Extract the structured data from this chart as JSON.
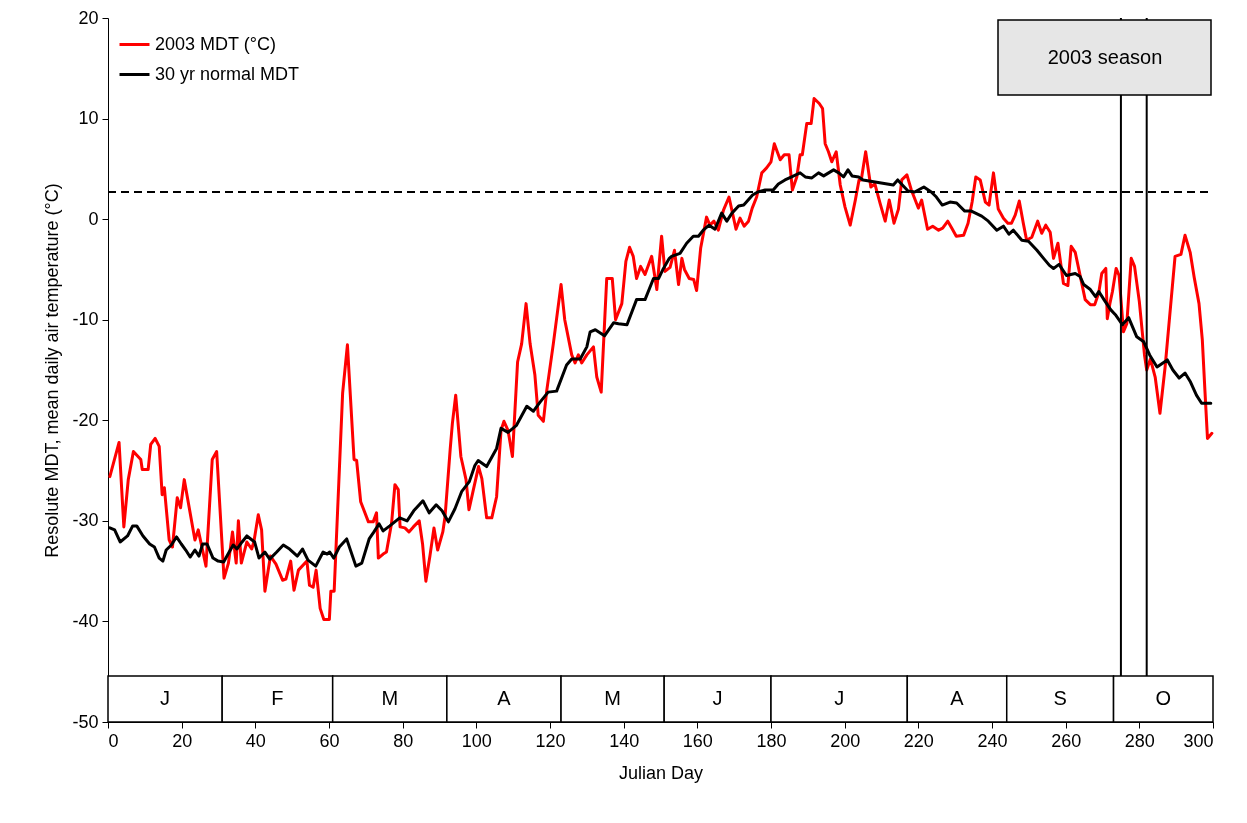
{
  "chart_data": {
    "type": "line",
    "xlabel": "Julian Day",
    "ylabel": "Resolute MDT, mean daily air temperature (°C)",
    "xlim": [
      0,
      300
    ],
    "xticks": [
      0,
      20,
      40,
      60,
      80,
      100,
      120,
      140,
      160,
      180,
      200,
      220,
      240,
      260,
      280,
      300
    ],
    "ylim": [
      -50,
      20
    ],
    "yticks": [
      -50,
      -40,
      -30,
      -20,
      -10,
      0,
      10,
      20
    ],
    "grid": false,
    "legend": "top left",
    "line_style": "solid",
    "marker": "none",
    "series": [
      {
        "name": "2003 MDT (°C)",
        "color": "#ff0000",
        "x": [
          0.5,
          3,
          4.3,
          5.5,
          6.9,
          8.9,
          9.3,
          10.9,
          11.6,
          12.8,
          13.9,
          14.7,
          15.3,
          16.6,
          17.5,
          18.8,
          19.7,
          20.7,
          23.6,
          24.5,
          26.6,
          28.3,
          29.5,
          31.5,
          32.7,
          33.8,
          34.8,
          35.4,
          36.2,
          37.7,
          39,
          39.6,
          40.8,
          41.7,
          42.6,
          44.1,
          45.6,
          47.4,
          48.3,
          49.6,
          50.5,
          51.7,
          54,
          54.7,
          55.7,
          56.5,
          57.6,
          58.6,
          60.1,
          60.5,
          61.4,
          63.7,
          65,
          66.8,
          67.5,
          68.6,
          70.7,
          72,
          72.9,
          73.4,
          74.7,
          75.6,
          77,
          77.9,
          78.8,
          79.3,
          80.6,
          81.7,
          82.9,
          84.5,
          85.4,
          86.3,
          87.4,
          88.5,
          89.5,
          90.9,
          91.5,
          92.9,
          93.5,
          94.4,
          95.8,
          97.2,
          98,
          99.2,
          100.6,
          101.5,
          102.8,
          104.2,
          105.5,
          106.7,
          107.5,
          108.6,
          109.8,
          111.2,
          112.3,
          113.5,
          114.6,
          115.9,
          116.8,
          118.2,
          119.1,
          120.9,
          123,
          124,
          125.9,
          126.8,
          127.7,
          128.6,
          130,
          131.8,
          132.7,
          133.9,
          135.4,
          136.9,
          137.8,
          139.5,
          140.6,
          141.6,
          142.6,
          143.5,
          144.6,
          145.8,
          147.6,
          149,
          150.3,
          151.2,
          152.6,
          153.8,
          154.9,
          155.8,
          156.5,
          157.8,
          159,
          159.8,
          160.9,
          162.5,
          163.4,
          164.5,
          165.7,
          167.1,
          168.6,
          170.5,
          171.6,
          172.7,
          173.9,
          174.9,
          176.1,
          177.5,
          178.8,
          180,
          180.9,
          182.5,
          183.6,
          184.9,
          185.8,
          187,
          187.9,
          188.5,
          189.7,
          190.9,
          191.7,
          193.1,
          194,
          194.7,
          195.6,
          196.5,
          197.7,
          198.8,
          200.1,
          201.5,
          202.9,
          203.9,
          204.5,
          205.7,
          207.1,
          208.2,
          209.6,
          211,
          212.1,
          213.4,
          214.6,
          215.5,
          216.9,
          218.1,
          220,
          220.9,
          222.5,
          223.9,
          225.5,
          226.6,
          228,
          229.1,
          230.3,
          232.3,
          233.5,
          234.6,
          235.6,
          236.8,
          238.2,
          239.2,
          240.4,
          241.7,
          243.1,
          244.3,
          245.3,
          246.3,
          247.4,
          248.5,
          249.4,
          250.8,
          252.4,
          253.5,
          254.6,
          255.8,
          256.7,
          257.9,
          259.4,
          260.6,
          261.5,
          262.6,
          265.3,
          266.7,
          267.9,
          269,
          269.8,
          270.9,
          271.3,
          272,
          272.7,
          273.7,
          274.5,
          275.7,
          276.6,
          277.8,
          278.7,
          280,
          281.4,
          282,
          283,
          284.3,
          285.6,
          287,
          288.3,
          289.7,
          291.3,
          292.4,
          293.8,
          294.9,
          296.2,
          297.1,
          297.8,
          298.5,
          299.7
        ],
        "values": [
          -25.6,
          -22.2,
          -30.6,
          -25.9,
          -23.1,
          -23.9,
          -24.9,
          -24.9,
          -22.4,
          -21.8,
          -22.6,
          -27.4,
          -26.7,
          -31.9,
          -32.6,
          -27.7,
          -28.7,
          -25.9,
          -31.9,
          -30.9,
          -34.5,
          -23.9,
          -23.1,
          -35.7,
          -34.2,
          -31.1,
          -34.2,
          -30,
          -34.2,
          -32.1,
          -32.8,
          -32.1,
          -29.4,
          -30.9,
          -37,
          -33.5,
          -34.3,
          -35.9,
          -35.8,
          -34,
          -36.9,
          -34.9,
          -34,
          -36.4,
          -36.6,
          -34.9,
          -38.7,
          -39.8,
          -39.8,
          -37,
          -37,
          -17.3,
          -12.5,
          -23.9,
          -24,
          -28.1,
          -30.1,
          -30.1,
          -29.2,
          -33.7,
          -33.3,
          -33.1,
          -30.2,
          -26.4,
          -26.9,
          -30.6,
          -30.7,
          -31.1,
          -30.6,
          -30,
          -32.3,
          -36,
          -33.5,
          -30.7,
          -32.9,
          -31.1,
          -29.6,
          -22.9,
          -20.3,
          -17.5,
          -23.6,
          -25.9,
          -28.9,
          -26.9,
          -24.6,
          -25.8,
          -29.7,
          -29.7,
          -27.6,
          -21,
          -20.1,
          -21,
          -23.6,
          -14.2,
          -12.4,
          -8.4,
          -12.4,
          -15.5,
          -19.5,
          -20.1,
          -17.1,
          -12.4,
          -6.5,
          -10,
          -13.5,
          -14.3,
          -13.5,
          -14.3,
          -13.5,
          -12.7,
          -15.7,
          -17.2,
          -5.9,
          -5.9,
          -10,
          -8.4,
          -4.2,
          -2.8,
          -3.7,
          -5.9,
          -4.7,
          -5.5,
          -3.7,
          -7,
          -1.7,
          -5.2,
          -4.8,
          -3.1,
          -6.5,
          -3.9,
          -5,
          -5.9,
          -6,
          -7.1,
          -2.9,
          0.2,
          -0.6,
          -0.2,
          -1.1,
          0.9,
          2.2,
          -1,
          0.1,
          -0.7,
          -0.2,
          1.1,
          2.2,
          4.6,
          5.1,
          5.7,
          7.5,
          5.9,
          6.4,
          6.4,
          2.9,
          4.2,
          6.4,
          6.4,
          9.5,
          9.5,
          12,
          11.5,
          11,
          7.5,
          6.7,
          5.7,
          6.7,
          3.4,
          1.2,
          -0.6,
          1.9,
          3.9,
          3.9,
          6.7,
          3.2,
          3.5,
          1.6,
          -0.2,
          1.9,
          -0.4,
          1,
          3.9,
          4.4,
          2.9,
          1.1,
          1.9,
          -1,
          -0.7,
          -1.1,
          -0.9,
          -0.2,
          -0.9,
          -1.7,
          -1.6,
          -0.4,
          1.7,
          4.2,
          3.9,
          1.7,
          1.4,
          4.6,
          1,
          0.1,
          -0.4,
          -0.4,
          0.4,
          1.8,
          -0.4,
          -2.1,
          -1.8,
          -0.2,
          -1.4,
          -0.6,
          -1.3,
          -3.9,
          -2.4,
          -6.4,
          -6.6,
          -2.7,
          -3.3,
          -8,
          -8.5,
          -8.5,
          -7.3,
          -5.4,
          -4.9,
          -9.9,
          -8.4,
          -7.2,
          -4.9,
          -5.6,
          -11.2,
          -10.4,
          -3.9,
          -4.7,
          -8.2,
          -13.5,
          -15,
          -13.9,
          -15.7,
          -19.3,
          -14.7,
          -9.4,
          -3.7,
          -3.5,
          -1.6,
          -3.3,
          -5.8,
          -8.4,
          -12,
          -17,
          -21.8,
          -21.3
        ]
      },
      {
        "name": "30 yr normal MDT",
        "color": "#000000",
        "x": [
          0.5,
          1.8,
          3.3,
          5.3,
          6.7,
          7.8,
          9.5,
          11.3,
          12.6,
          13.9,
          14.9,
          15.8,
          17.2,
          18.6,
          19.9,
          21.1,
          22.3,
          23.6,
          24.7,
          25.7,
          26.9,
          28.5,
          29.9,
          31.4,
          32.9,
          34,
          35,
          36.4,
          37.7,
          39.8,
          41,
          42.6,
          43.9,
          45.8,
          47.6,
          49.3,
          51.4,
          52.8,
          54.3,
          56.4,
          58.4,
          59.5,
          60.2,
          61.3,
          62.8,
          64.8,
          67.3,
          68.9,
          70.9,
          72.2,
          73.6,
          74.7,
          76.5,
          79.2,
          81.2,
          83,
          85.5,
          87.2,
          89.1,
          90.7,
          92.4,
          94.2,
          96,
          98.1,
          99.6,
          100.5,
          102.8,
          105.5,
          106.7,
          108.6,
          110.9,
          113.7,
          115.5,
          117.3,
          119.5,
          121.8,
          124.5,
          125.9,
          128.2,
          130,
          130.9,
          132.3,
          134.8,
          137.3,
          138.6,
          140.9,
          143.5,
          145.8,
          148.1,
          149.5,
          150.8,
          152.4,
          153,
          155.3,
          157.1,
          158.9,
          160.3,
          161.6,
          163.2,
          164.8,
          166.6,
          168,
          169.4,
          171.2,
          172.6,
          175,
          176.4,
          178.4,
          180.6,
          182,
          183.8,
          185.6,
          187.9,
          189.3,
          191.1,
          192.9,
          194.3,
          197,
          198.4,
          199.7,
          200.9,
          202,
          203.8,
          205,
          213.2,
          214.4,
          217.2,
          219,
          221.5,
          223.5,
          224.9,
          226.5,
          228.6,
          230.4,
          232.6,
          234.4,
          237.2,
          239,
          241.3,
          243.1,
          244.6,
          245.8,
          248.1,
          249.9,
          252.2,
          254,
          255.6,
          256.7,
          258.2,
          260.2,
          262.6,
          263.9,
          264.9,
          266.7,
          268.1,
          269,
          270.4,
          272.2,
          273.5,
          275.4,
          277.1,
          279.3,
          281.2,
          282.8,
          284.8,
          287.6,
          289.1,
          290.8,
          292.4,
          293.9,
          295.5,
          296.9,
          299.4
        ],
        "values": [
          -30.7,
          -30.9,
          -32.1,
          -31.5,
          -30.5,
          -30.5,
          -31.5,
          -32.3,
          -32.6,
          -33.7,
          -34,
          -32.9,
          -32.4,
          -31.6,
          -32.3,
          -32.9,
          -33.6,
          -32.9,
          -33.5,
          -32.3,
          -32.3,
          -33.7,
          -34,
          -34.1,
          -33.1,
          -32.4,
          -32.8,
          -32.1,
          -31.5,
          -32.1,
          -33.7,
          -33.1,
          -33.8,
          -33.1,
          -32.4,
          -32.8,
          -33.5,
          -32.8,
          -33.9,
          -34.5,
          -33.1,
          -33.3,
          -33.1,
          -33.7,
          -32.6,
          -31.8,
          -34.5,
          -34.2,
          -31.8,
          -31.1,
          -30.3,
          -31,
          -30.5,
          -29.7,
          -30,
          -29,
          -28,
          -29.2,
          -28.4,
          -29,
          -30.1,
          -28.8,
          -27.1,
          -26.1,
          -24.5,
          -24,
          -24.6,
          -22.8,
          -20.8,
          -21.2,
          -20.5,
          -18.6,
          -19.1,
          -18.2,
          -17.2,
          -17.1,
          -14.5,
          -13.9,
          -13.9,
          -12.7,
          -11.2,
          -11,
          -11.6,
          -10.3,
          -10.4,
          -10.5,
          -8,
          -8,
          -5.9,
          -5.9,
          -4.9,
          -3.9,
          -3.7,
          -3.4,
          -2.4,
          -1.7,
          -1.7,
          -1.1,
          -0.6,
          -1,
          0.6,
          -0.2,
          0.6,
          1.3,
          1.4,
          2.4,
          2.7,
          2.9,
          2.9,
          3.5,
          3.9,
          4.2,
          4.6,
          4.2,
          4.1,
          4.6,
          4.3,
          4.9,
          4.6,
          4.2,
          4.9,
          4.3,
          4.2,
          3.9,
          3.4,
          3.9,
          2.8,
          2.7,
          3.2,
          2.7,
          2.2,
          1.4,
          1.7,
          1.6,
          0.8,
          0.8,
          0.3,
          -0.2,
          -1.1,
          -0.7,
          -1.5,
          -1.1,
          -2.1,
          -2.2,
          -3.1,
          -3.9,
          -4.6,
          -4.9,
          -4.5,
          -5.6,
          -5.4,
          -5.7,
          -6.5,
          -7,
          -7.7,
          -7.2,
          -8,
          -9,
          -9.5,
          -10.5,
          -9.8,
          -11.7,
          -12.2,
          -13.5,
          -14.7,
          -14,
          -15,
          -15.8,
          -15.3,
          -16.2,
          -17.5,
          -18.3,
          -18.3
        ]
      }
    ],
    "ref_lines": [
      {
        "axis": "y",
        "value": 2.7,
        "line_style": "dashed",
        "color": "#000000"
      },
      {
        "axis": "x",
        "value": 275,
        "color": "#000000"
      },
      {
        "axis": "x",
        "value": 282,
        "color": "#000000"
      }
    ],
    "bands": [
      {
        "axis": "x",
        "from": 0,
        "to": 31,
        "label": "J",
        "color": "#ffffff"
      },
      {
        "axis": "x",
        "from": 31,
        "to": 61,
        "label": "F",
        "color": "#ffffff"
      },
      {
        "axis": "x",
        "from": 61,
        "to": 92,
        "label": "M",
        "color": "#ffffff"
      },
      {
        "axis": "x",
        "from": 92,
        "to": 123,
        "label": "A",
        "color": "#ffffff"
      },
      {
        "axis": "x",
        "from": 123,
        "to": 151,
        "label": "M",
        "color": "#ffffff"
      },
      {
        "axis": "x",
        "from": 151,
        "to": 180,
        "label": "J",
        "color": "#ffffff"
      },
      {
        "axis": "x",
        "from": 180,
        "to": 217,
        "label": "J",
        "color": "#ffffff"
      },
      {
        "axis": "x",
        "from": 217,
        "to": 244,
        "label": "A",
        "color": "#ffffff"
      },
      {
        "axis": "x",
        "from": 244,
        "to": 273,
        "label": "S",
        "color": "#ffffff"
      },
      {
        "axis": "x",
        "from": 273,
        "to": 300,
        "label": "O",
        "color": "#ffffff"
      }
    ],
    "annotations": [
      "2003 season"
    ]
  }
}
